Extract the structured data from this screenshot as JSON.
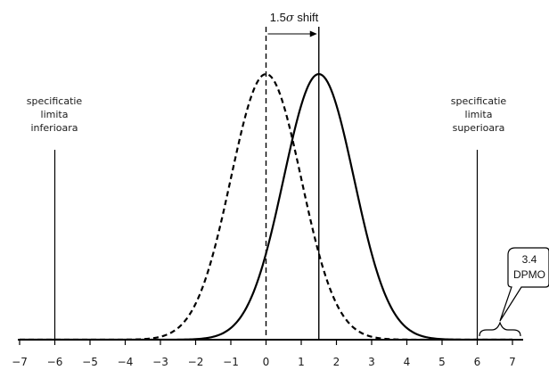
{
  "chart_data": {
    "type": "line",
    "xlim": [
      -7,
      7
    ],
    "x_ticks": [
      "−7",
      "−6",
      "−5",
      "−4",
      "−3",
      "−2",
      "−1",
      "0",
      "1",
      "2",
      "3",
      "4",
      "5",
      "6",
      "7"
    ],
    "series": [
      {
        "style": "dashed",
        "mean": 0,
        "sigma": 1
      },
      {
        "style": "solid",
        "mean": 1.5,
        "sigma": 1
      }
    ],
    "lower_spec_limit": {
      "x": -6,
      "lines": [
        "specificatie",
        "limita",
        "inferioara"
      ]
    },
    "upper_spec_limit": {
      "x": 6,
      "lines": [
        "specificatie",
        "limita",
        "superioara"
      ]
    },
    "shift_annotation": {
      "from": 0,
      "to": 1.5,
      "prefix": "1.5",
      "symbol": "σ",
      "suffix": " shift"
    },
    "tail_callout": {
      "value": "3.4",
      "unit": "DPMO"
    }
  }
}
